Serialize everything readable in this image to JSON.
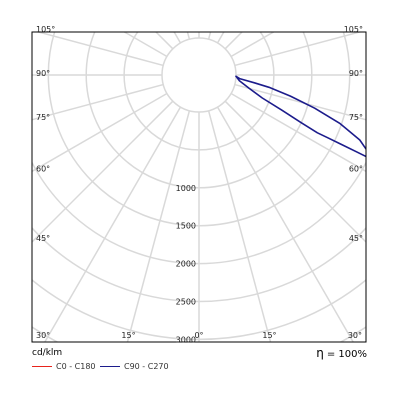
{
  "chart_data": {
    "type": "polar",
    "unit": "cd/klm",
    "efficiency_label": "η",
    "efficiency_value": "= 100%",
    "radial_max": 3600,
    "radial_ticks": [
      {
        "value": 500,
        "label": ""
      },
      {
        "value": 1000,
        "label": "1000"
      },
      {
        "value": 1500,
        "label": "1500"
      },
      {
        "value": 2000,
        "label": "2000"
      },
      {
        "value": 2500,
        "label": "2500"
      },
      {
        "value": 3000,
        "label": "3000"
      },
      {
        "value": 3500,
        "label": ""
      }
    ],
    "angle_ticks": {
      "left": [
        {
          "angle": 105,
          "label": "105°"
        },
        {
          "angle": 90,
          "label": "90°"
        },
        {
          "angle": 75,
          "label": "75°"
        },
        {
          "angle": 60,
          "label": "60°"
        },
        {
          "angle": 45,
          "label": "45°"
        }
      ],
      "right": [
        {
          "angle": 105,
          "label": "105°"
        },
        {
          "angle": 90,
          "label": "90°"
        },
        {
          "angle": 75,
          "label": "75°"
        },
        {
          "angle": 60,
          "label": "60°"
        },
        {
          "angle": 45,
          "label": "45°"
        }
      ],
      "bottom": [
        {
          "angle": -30,
          "label": "30°"
        },
        {
          "angle": -15,
          "label": "15°"
        },
        {
          "angle": 0,
          "label": "0°"
        },
        {
          "angle": 15,
          "label": "15°"
        },
        {
          "angle": 30,
          "label": "30°"
        }
      ]
    },
    "series": [
      {
        "name": "C0 - C180",
        "color": "#e8231c",
        "points": []
      },
      {
        "name": "C90 - C270",
        "color": "#1c1c8c",
        "points": [
          {
            "angle": 88,
            "value": 0
          },
          {
            "angle": 85,
            "value": 50
          },
          {
            "angle": 82,
            "value": 250
          },
          {
            "angle": 80,
            "value": 450
          },
          {
            "angle": 77,
            "value": 750
          },
          {
            "angle": 74,
            "value": 1100
          },
          {
            "angle": 71,
            "value": 1480
          },
          {
            "angle": 68,
            "value": 1800
          },
          {
            "angle": 65,
            "value": 2000
          },
          {
            "angle": 64,
            "value": 2000
          },
          {
            "angle": 64,
            "value": 1850
          },
          {
            "angle": 64,
            "value": 1600
          },
          {
            "angle": 64,
            "value": 1400
          },
          {
            "angle": 64,
            "value": 1250
          },
          {
            "angle": 65,
            "value": 1000
          },
          {
            "angle": 67,
            "value": 700
          },
          {
            "angle": 70,
            "value": 400
          },
          {
            "angle": 75,
            "value": 200
          },
          {
            "angle": 82,
            "value": 50
          },
          {
            "angle": 88,
            "value": 0
          }
        ]
      }
    ]
  }
}
